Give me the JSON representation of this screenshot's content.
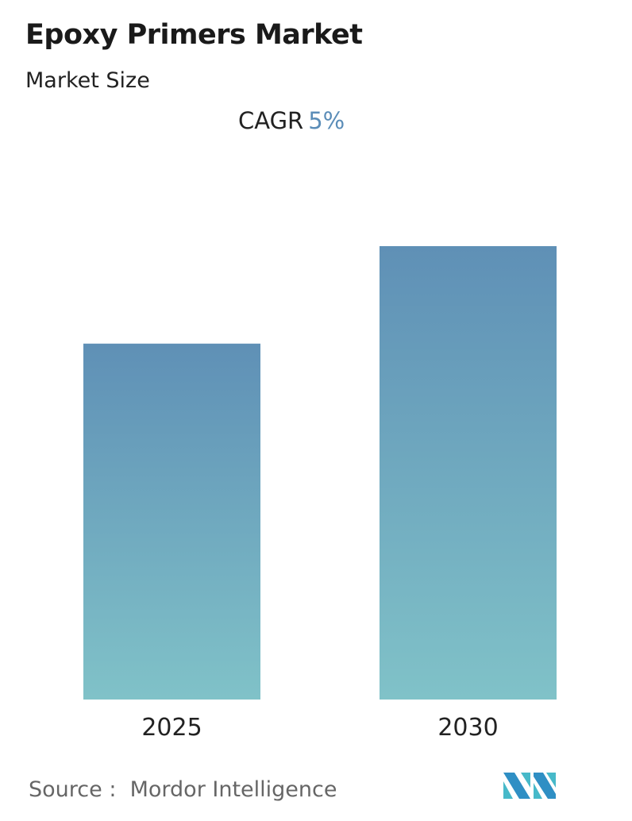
{
  "header": {
    "title": "Epoxy Primers Market",
    "subtitle": "Market Size",
    "cagr_label": "CAGR",
    "cagr_value": "5%"
  },
  "chart_data": {
    "type": "bar",
    "categories": [
      "2025",
      "2030"
    ],
    "values": [
      78.5,
      100
    ],
    "value_note": "relative bar heights; no y-axis values printed",
    "grid": false,
    "colors": {
      "top": "#5f90b6",
      "bottom": "#80c2c8",
      "accent": "#5b8db8"
    }
  },
  "footer": {
    "source_label": "Source :",
    "source_name": "Mordor Intelligence",
    "logo_text": "Mordor Intelligence"
  }
}
